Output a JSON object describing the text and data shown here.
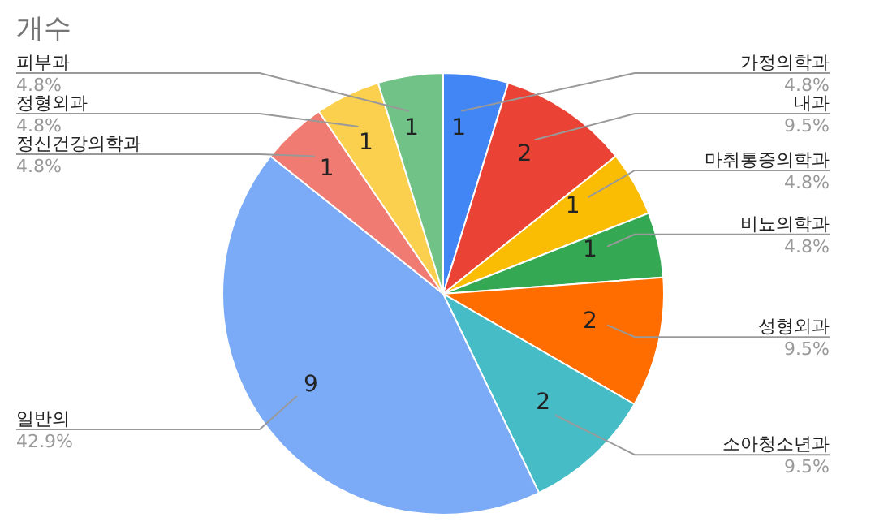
{
  "chart_data": {
    "type": "pie",
    "title": "개수",
    "categories": [
      "가정의학과",
      "내과",
      "마취통증의학과",
      "비뇨의학과",
      "성형외과",
      "소아청소년과",
      "일반의",
      "정신건강의학과",
      "정형외과",
      "피부과"
    ],
    "values": [
      1,
      2,
      1,
      1,
      2,
      2,
      9,
      1,
      1,
      1
    ],
    "colors": [
      "#4285f4",
      "#ea4335",
      "#fbbc04",
      "#34a853",
      "#ff6d01",
      "#46bdc6",
      "#7baaf7",
      "#f07b72",
      "#fcd04f",
      "#71c287"
    ],
    "data_labels": true,
    "annotations": [
      "4.8%",
      "9.5%",
      "4.8%",
      "4.8%",
      "9.5%",
      "9.5%",
      "42.9%",
      "4.8%",
      "4.8%",
      "4.8%"
    ]
  }
}
